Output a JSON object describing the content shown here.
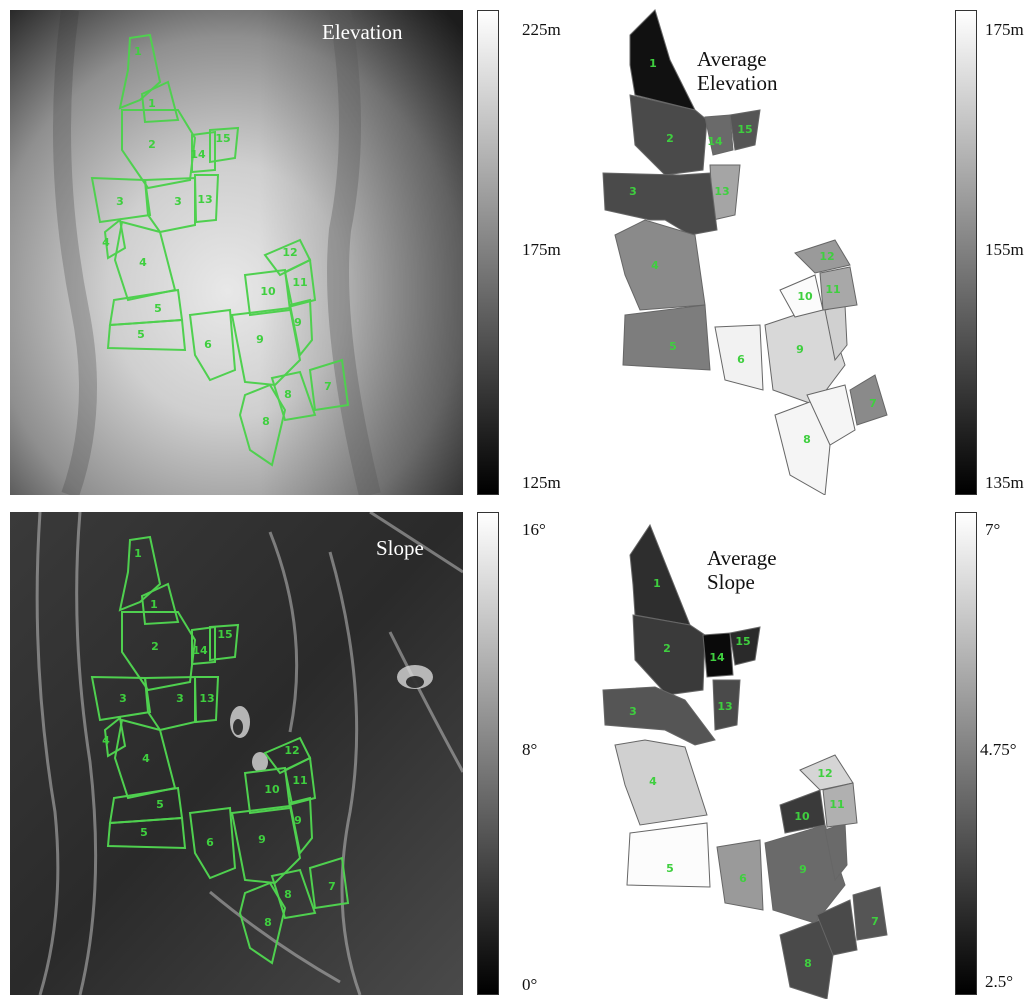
{
  "panels": {
    "elevation_map": {
      "title": "Elevation",
      "scale": {
        "max": "225m",
        "mid": "175m",
        "min": "125m"
      }
    },
    "avg_elevation": {
      "title_line1": "Average",
      "title_line2": "Elevation",
      "scale": {
        "max": "175m",
        "mid": "155m",
        "min": "135m"
      }
    },
    "slope_map": {
      "title": "Slope",
      "scale": {
        "max": "16°",
        "mid": "8°",
        "min": "0°"
      }
    },
    "avg_slope": {
      "title_line1": "Average",
      "title_line2": "Slope",
      "scale": {
        "max": "7°",
        "mid": "4.75°",
        "min": "2.5°"
      }
    }
  },
  "field_labels": [
    "1",
    "1",
    "2",
    "3",
    "3",
    "4",
    "5",
    "5",
    "6",
    "7",
    "8",
    "8",
    "9",
    "9",
    "10",
    "11",
    "12",
    "13",
    "14",
    "15"
  ],
  "colors": {
    "field_outline": "#4fd04f",
    "field_label": "#3fcf3f"
  }
}
